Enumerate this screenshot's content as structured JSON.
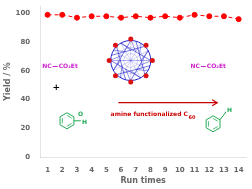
{
  "chart_data": {
    "type": "line",
    "x": [
      1,
      2,
      3,
      4,
      5,
      6,
      7,
      8,
      9,
      10,
      11,
      12,
      13,
      14
    ],
    "values": [
      99,
      99,
      97,
      98,
      98,
      97,
      98,
      97,
      98,
      97,
      99,
      98,
      98,
      96
    ],
    "color": "#ff0000",
    "line_style": "dashed",
    "marker": "circle",
    "xlabel": "Run times",
    "ylabel": "Yield / %",
    "xlim": [
      0.5,
      14.5
    ],
    "xticks": [
      1,
      2,
      3,
      4,
      5,
      6,
      7,
      8,
      9,
      10,
      11,
      12,
      13,
      14
    ],
    "ylim": [
      0,
      105
    ],
    "yticks": [
      0,
      20,
      40,
      60,
      80,
      100
    ],
    "grid": false,
    "annotations": [
      {
        "text": "NC",
        "color": "#cc22cc"
      },
      {
        "text": "CO₂Et",
        "color": "#cc22cc"
      },
      {
        "text": "+",
        "color": "#000000"
      },
      {
        "text": "O",
        "color": "#22aa55"
      },
      {
        "text": "H",
        "color": "#22aa55"
      },
      {
        "text": "NC",
        "color": "#cc22cc"
      },
      {
        "text": "CO₂Et",
        "color": "#cc22cc"
      },
      {
        "text": "H",
        "color": "#22aa55"
      },
      {
        "text": "amine functionalized C",
        "color": "#cc0000"
      },
      {
        "text": "60",
        "color": "#cc0000"
      }
    ]
  }
}
